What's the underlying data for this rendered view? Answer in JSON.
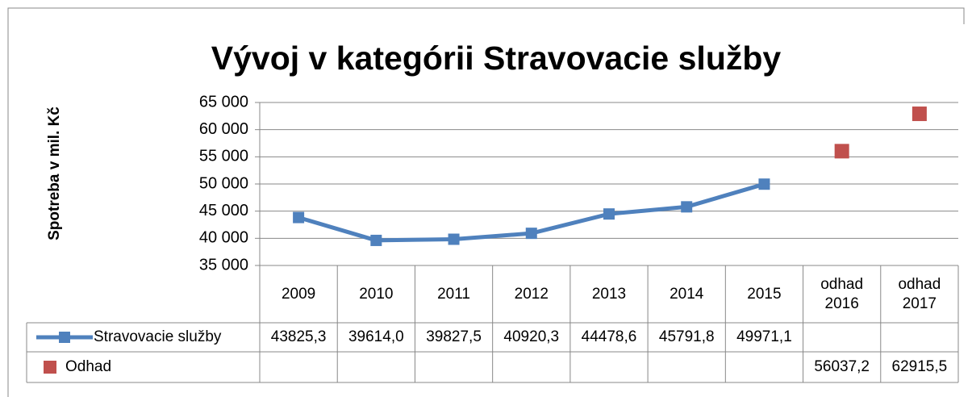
{
  "chart_data": {
    "type": "line",
    "title": "Vývoj v kategórii Stravovacie služby",
    "y_axis_label": "Spotreba v mil. Kč",
    "categories": [
      "2009",
      "2010",
      "2011",
      "2012",
      "2013",
      "2014",
      "2015",
      "odhad 2016",
      "odhad 2017"
    ],
    "series": [
      {
        "name": "Stravovacie služby",
        "color": "#4f81bd",
        "marker": "square",
        "values": [
          43825.3,
          39614.0,
          39827.5,
          40920.3,
          44478.6,
          45791.8,
          49971.1,
          null,
          null
        ],
        "value_labels": [
          "43825,3",
          "39614,0",
          "39827,5",
          "40920,3",
          "44478,6",
          "45791,8",
          "49971,1",
          null,
          null
        ]
      },
      {
        "name": "Odhad",
        "color": "#c0504d",
        "marker": "square",
        "line": false,
        "values": [
          null,
          null,
          null,
          null,
          null,
          null,
          null,
          56037.2,
          62915.5
        ],
        "value_labels": [
          null,
          null,
          null,
          null,
          null,
          null,
          null,
          "56037,2",
          "62915,5"
        ]
      }
    ],
    "ylim": [
      35000,
      65000
    ],
    "yticks": [
      {
        "value": 35000,
        "label": "35 000"
      },
      {
        "value": 40000,
        "label": "40 000"
      },
      {
        "value": 45000,
        "label": "45 000"
      },
      {
        "value": 50000,
        "label": "50 000"
      },
      {
        "value": 55000,
        "label": "55 000"
      },
      {
        "value": 60000,
        "label": "60 000"
      },
      {
        "value": 65000,
        "label": "65 000"
      }
    ],
    "grid": true,
    "data_table": true
  }
}
